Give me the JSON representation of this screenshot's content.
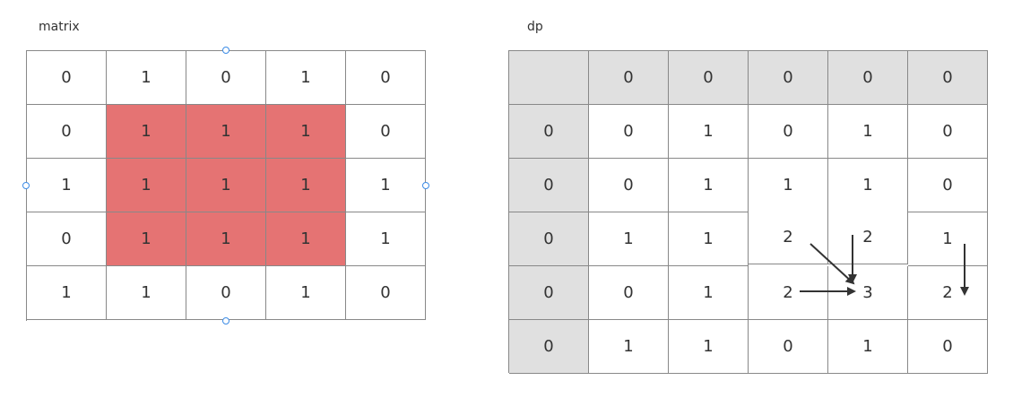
{
  "matrix": {
    "title": "matrix",
    "rows": [
      [
        "0",
        "1",
        "0",
        "1",
        "0"
      ],
      [
        "0",
        "1",
        "1",
        "1",
        "0"
      ],
      [
        "1",
        "1",
        "1",
        "1",
        "1"
      ],
      [
        "0",
        "1",
        "1",
        "1",
        "1"
      ],
      [
        "1",
        "1",
        "0",
        "1",
        "0"
      ]
    ],
    "highlight": [
      [
        1,
        1
      ],
      [
        1,
        2
      ],
      [
        1,
        3
      ],
      [
        2,
        1
      ],
      [
        2,
        2
      ],
      [
        2,
        3
      ],
      [
        3,
        1
      ],
      [
        3,
        2
      ],
      [
        3,
        3
      ]
    ],
    "highlight_color": "#e57373"
  },
  "dp": {
    "title": "dp",
    "header_row": [
      "",
      "0",
      "0",
      "0",
      "0",
      "0"
    ],
    "rows": [
      [
        "0",
        "0",
        "1",
        "0",
        "1",
        "0"
      ],
      [
        "0",
        "0",
        "1",
        "1",
        "1",
        "0"
      ],
      [
        "0",
        "1",
        "1",
        "2",
        "2",
        "1"
      ],
      [
        "0",
        "0",
        "1",
        "2",
        "3",
        "2"
      ],
      [
        "0",
        "1",
        "1",
        "0",
        "1",
        "0"
      ]
    ],
    "header_color": "#e0e0e0"
  },
  "colors": {
    "grid_line": "#888888",
    "text": "#333333",
    "selection_handle": "#3c8ce6",
    "arrow": "#333333"
  }
}
